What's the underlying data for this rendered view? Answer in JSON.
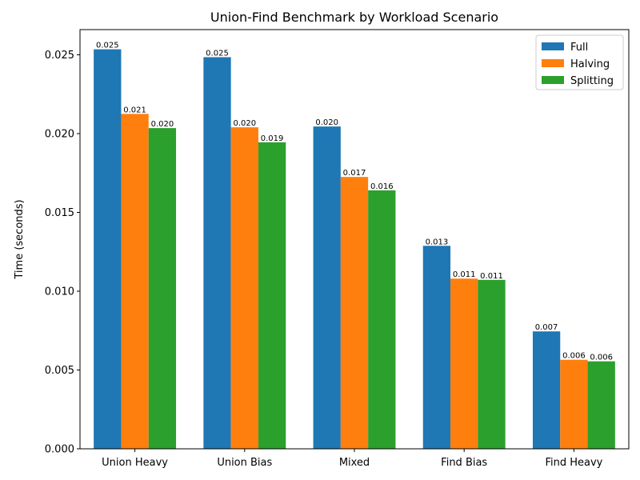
{
  "chart_data": {
    "type": "bar",
    "title": "Union-Find Benchmark by Workload Scenario",
    "xlabel": "",
    "ylabel": "Time (seconds)",
    "categories": [
      "Union Heavy",
      "Union Bias",
      "Mixed",
      "Find Bias",
      "Find Heavy"
    ],
    "series": [
      {
        "name": "Full",
        "color": "#1f77b4",
        "values": [
          0.02535,
          0.02485,
          0.02045,
          0.01288,
          0.00745
        ],
        "labels": [
          "0.025",
          "0.025",
          "0.020",
          "0.013",
          "0.007"
        ]
      },
      {
        "name": "Halving",
        "color": "#ff7f0e",
        "values": [
          0.02125,
          0.0204,
          0.01725,
          0.0108,
          0.00565
        ],
        "labels": [
          "0.021",
          "0.020",
          "0.017",
          "0.011",
          "0.006"
        ]
      },
      {
        "name": "Splitting",
        "color": "#2ca02c",
        "values": [
          0.02035,
          0.01945,
          0.0164,
          0.01072,
          0.00555
        ],
        "labels": [
          "0.020",
          "0.019",
          "0.016",
          "0.011",
          "0.006"
        ]
      }
    ],
    "ylim": [
      0,
      0.0266
    ],
    "yticks": [
      0,
      0.005,
      0.01,
      0.015,
      0.02,
      0.025
    ],
    "ytick_labels": [
      "0.000",
      "0.005",
      "0.010",
      "0.015",
      "0.020",
      "0.025"
    ],
    "grid": false,
    "legend_position": "top-right"
  }
}
